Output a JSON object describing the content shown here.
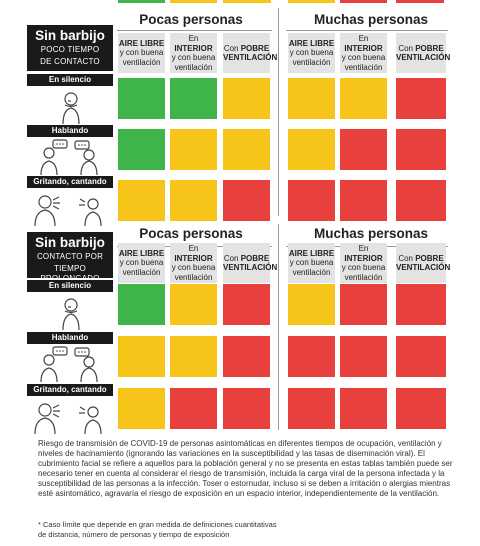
{
  "top_strip_colors": [
    "#3fb44a",
    "#f7c41a",
    "#f7c41a",
    "#f7c41a",
    "#e8403c",
    "#e8403c"
  ],
  "colors": {
    "green": "#3fb44a",
    "yellow": "#f7c41a",
    "red": "#e8403c",
    "header_gray": "#e3e3e3",
    "dark": "#1a1a1a"
  },
  "group_titles": [
    "Pocas personas",
    "Muchas personas"
  ],
  "col_headers": [
    {
      "bold": "AIRE LIBRE",
      "rest": "y con buena ventilación"
    },
    {
      "pre": "En",
      "bold": "INTERIOR",
      "rest": "y con buena ventilación"
    },
    {
      "pre": "Con",
      "bold": "POBRE VENTILACIÓN",
      "rest": ""
    }
  ],
  "row_labels": [
    "En silencio",
    "Hablando",
    "Gritando, cantando"
  ],
  "row_icons": [
    "person-silent-icon",
    "people-talking-icon",
    "people-shouting-icon"
  ],
  "sections": [
    {
      "title": "Sin barbijo",
      "subtitle_line1": "POCO TIEMPO",
      "subtitle_line2": "DE CONTACTO",
      "grid": [
        [
          "green",
          "green",
          "yellow",
          "yellow",
          "yellow",
          "red"
        ],
        [
          "green",
          "yellow",
          "yellow",
          "yellow",
          "red",
          "red"
        ],
        [
          "yellow",
          "yellow",
          "red",
          "red",
          "red",
          "red"
        ]
      ]
    },
    {
      "title": "Sin barbijo",
      "subtitle_line1": "CONTACTO POR",
      "subtitle_line2": "TIEMPO PROLONGADO",
      "grid": [
        [
          "green",
          "yellow",
          "red",
          "yellow",
          "red",
          "red"
        ],
        [
          "yellow",
          "yellow",
          "red",
          "red",
          "red",
          "red"
        ],
        [
          "yellow",
          "red",
          "red",
          "red",
          "red",
          "red"
        ]
      ]
    }
  ],
  "caption": "Riesgo de transmisión de COVID-19 de personas asintomáticas en diferentes tiempos de ocupación, ventilación y niveles de hacinamiento (ignorando las variaciones en la susceptibilidad y las tasas de diseminación viral). El cubrimiento facial se refiere a aquellos para la población general y no se presenta en estas tablas también puede ser necesario tener en cuenta al considerar el riesgo de transmisión, incluida la carga viral de la persona infectada y la susceptibilidad de las personas a la infección. Toser o estornudar, incluso si se deben a irritación o alergias mientras esté asintomático, agravaría el riesgo de exposición en un espacio interior, independientemente de la ventilación.",
  "footnote_line1": "* Caso límite que depende en gran medida de definiciones cuantitativas",
  "footnote_line2": "de distancia, número de personas y tiempo de exposición"
}
